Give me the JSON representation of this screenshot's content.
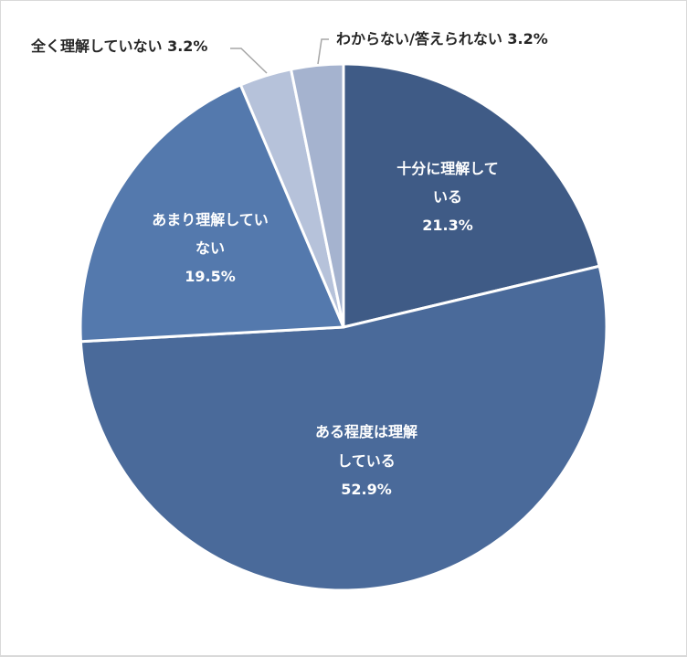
{
  "chart_data": {
    "type": "pie",
    "title": "",
    "start_angle_deg": 0,
    "direction": "clockwise",
    "categories": [
      "十分に理解している",
      "ある程度は理解している",
      "あまり理解していない",
      "全く理解していない",
      "わからない/答えられない"
    ],
    "values": [
      21.3,
      52.9,
      19.5,
      3.2,
      3.2
    ],
    "unit": "%",
    "colors": [
      "#3f5b86",
      "#4a6a9a",
      "#5479ad",
      "#b6c2da",
      "#a5b3cf"
    ],
    "legend": "none",
    "data_labels": [
      {
        "lines": [
          "十分に理解して",
          "いる",
          "21.3%"
        ],
        "position": "inside"
      },
      {
        "lines": [
          "ある程度は理解",
          "している",
          "52.9%"
        ],
        "position": "inside"
      },
      {
        "lines": [
          "あまり理解してい",
          "ない",
          "19.5%"
        ],
        "position": "inside"
      },
      {
        "lines": [
          "全く理解していない 3.2%"
        ],
        "position": "outside"
      },
      {
        "lines": [
          "わからない/答えられない 3.2%"
        ],
        "position": "outside"
      }
    ]
  },
  "labels": {
    "fully": {
      "l1": "十分に理解して",
      "l2": "いる",
      "pct": "21.3%"
    },
    "somewhat": {
      "l1": "ある程度は理解",
      "l2": "している",
      "pct": "52.9%"
    },
    "notmuch": {
      "l1": "あまり理解してい",
      "l2": "ない",
      "pct": "19.5%"
    },
    "none": {
      "text": "全く理解していない 3.2%"
    },
    "unknown": {
      "text": "わからない/答えられない 3.2%"
    }
  }
}
